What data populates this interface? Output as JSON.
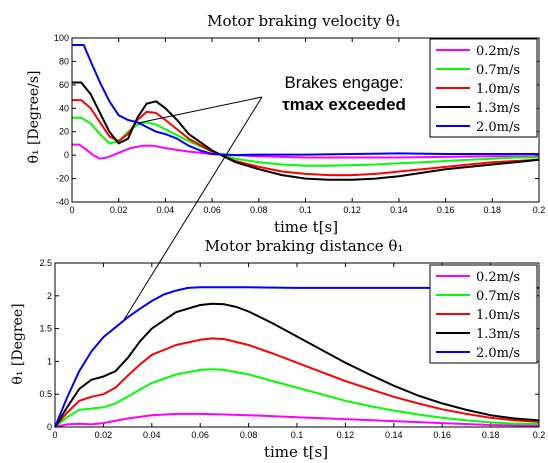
{
  "chart_data": [
    {
      "type": "line",
      "title": "Motor braking velocity θ̇₁",
      "xlabel": "time t[s]",
      "ylabel": "θ̇₁ [Degree/s]",
      "xlim": [
        0,
        0.2
      ],
      "ylim": [
        -40,
        100
      ],
      "xticks": [
        "0",
        "0.02",
        "0.04",
        "0.06",
        "0.08",
        "0.1",
        "0.12",
        "0.14",
        "0.16",
        "0.18",
        "0.2"
      ],
      "yticks": [
        "-40",
        "-20",
        "0",
        "20",
        "40",
        "60",
        "80",
        "100"
      ],
      "grid": false,
      "legend_position": "top-right",
      "annotation": {
        "lines": [
          "Brakes engage:",
          "τmax exceeded"
        ]
      },
      "series": [
        {
          "name": "0.2m/s",
          "color": "#ff00ff",
          "x": [
            0,
            0.003,
            0.006,
            0.009,
            0.012,
            0.015,
            0.02,
            0.025,
            0.03,
            0.035,
            0.04,
            0.05,
            0.06,
            0.07,
            0.08,
            0.1,
            0.12,
            0.14,
            0.16,
            0.18,
            0.2
          ],
          "y": [
            9,
            9,
            5,
            0,
            -3,
            -2,
            2,
            6,
            8,
            8,
            6,
            3,
            1,
            0,
            -1,
            -2,
            -2,
            -2,
            -1.5,
            -1,
            -1
          ]
        },
        {
          "name": "0.7m/s",
          "color": "#00ff00",
          "x": [
            0,
            0.004,
            0.008,
            0.012,
            0.016,
            0.02,
            0.024,
            0.028,
            0.032,
            0.036,
            0.04,
            0.045,
            0.05,
            0.06,
            0.07,
            0.08,
            0.09,
            0.1,
            0.11,
            0.12,
            0.13,
            0.14,
            0.15,
            0.16,
            0.17,
            0.18,
            0.19,
            0.2
          ],
          "y": [
            32,
            32,
            27,
            18,
            10,
            12,
            20,
            26,
            28,
            26,
            22,
            17,
            12,
            3,
            -3,
            -6,
            -8,
            -9,
            -9,
            -8.5,
            -8,
            -7,
            -6,
            -5,
            -4,
            -3,
            -2,
            -2
          ]
        },
        {
          "name": "1.0m/s",
          "color": "#ff0000",
          "x": [
            0,
            0.004,
            0.008,
            0.012,
            0.016,
            0.02,
            0.024,
            0.028,
            0.032,
            0.036,
            0.04,
            0.045,
            0.05,
            0.06,
            0.07,
            0.08,
            0.09,
            0.1,
            0.11,
            0.12,
            0.13,
            0.14,
            0.15,
            0.16,
            0.17,
            0.18,
            0.19,
            0.2
          ],
          "y": [
            47,
            47,
            40,
            28,
            16,
            12,
            18,
            30,
            37,
            36,
            30,
            22,
            14,
            3,
            -5,
            -10,
            -14,
            -16,
            -17,
            -17,
            -16,
            -14,
            -12,
            -10,
            -8,
            -6,
            -5,
            -4
          ]
        },
        {
          "name": "1.3m/s",
          "color": "#000000",
          "x": [
            0,
            0.004,
            0.008,
            0.012,
            0.016,
            0.02,
            0.024,
            0.028,
            0.032,
            0.036,
            0.04,
            0.045,
            0.05,
            0.06,
            0.07,
            0.08,
            0.09,
            0.1,
            0.11,
            0.12,
            0.13,
            0.14,
            0.15,
            0.16,
            0.17,
            0.18,
            0.19,
            0.2
          ],
          "y": [
            62,
            62,
            52,
            36,
            20,
            10,
            14,
            32,
            44,
            46,
            40,
            30,
            18,
            4,
            -6,
            -12,
            -17,
            -20,
            -21,
            -21,
            -20,
            -18,
            -15,
            -12,
            -10,
            -8,
            -6,
            -4
          ]
        },
        {
          "name": "2.0m/s",
          "color": "#0000ff",
          "x": [
            0,
            0.005,
            0.008,
            0.012,
            0.016,
            0.02,
            0.024,
            0.028,
            0.032,
            0.036,
            0.04,
            0.045,
            0.05,
            0.055,
            0.06,
            0.07,
            0.08,
            0.1,
            0.12,
            0.14,
            0.16,
            0.18,
            0.2
          ],
          "y": [
            94,
            94,
            80,
            62,
            46,
            34,
            30,
            28,
            24,
            20,
            18,
            14,
            8,
            4,
            1,
            0,
            0.5,
            0.5,
            1,
            1.5,
            1,
            1,
            1
          ]
        }
      ]
    },
    {
      "type": "line",
      "title": "Motor braking distance θ₁",
      "xlabel": "time t[s]",
      "ylabel": "θ₁ [Degree]",
      "xlim": [
        0,
        0.2
      ],
      "ylim": [
        0,
        2.5
      ],
      "xticks": [
        "0",
        "0.02",
        "0.04",
        "0.06",
        "0.08",
        "0.1",
        "0.12",
        "0.14",
        "0.16",
        "0.18",
        "0.2"
      ],
      "yticks": [
        "0",
        "0.5",
        "1",
        "1.5",
        "2",
        "2.5"
      ],
      "grid": false,
      "legend_position": "top-right",
      "series": [
        {
          "name": "0.2m/s",
          "color": "#ff00ff",
          "x": [
            0,
            0.005,
            0.01,
            0.015,
            0.02,
            0.03,
            0.04,
            0.05,
            0.06,
            0.07,
            0.08,
            0.1,
            0.12,
            0.14,
            0.16,
            0.18,
            0.2
          ],
          "y": [
            0,
            0.04,
            0.05,
            0.04,
            0.06,
            0.13,
            0.18,
            0.2,
            0.2,
            0.19,
            0.18,
            0.15,
            0.12,
            0.09,
            0.06,
            0.03,
            0.02
          ]
        },
        {
          "name": "0.7m/s",
          "color": "#00ff00",
          "x": [
            0,
            0.005,
            0.01,
            0.015,
            0.02,
            0.025,
            0.03,
            0.035,
            0.04,
            0.05,
            0.06,
            0.065,
            0.07,
            0.08,
            0.09,
            0.1,
            0.11,
            0.12,
            0.13,
            0.14,
            0.15,
            0.16,
            0.17,
            0.18,
            0.19,
            0.2
          ],
          "y": [
            0,
            0.15,
            0.26,
            0.28,
            0.3,
            0.36,
            0.46,
            0.57,
            0.67,
            0.8,
            0.87,
            0.88,
            0.87,
            0.8,
            0.7,
            0.6,
            0.5,
            0.4,
            0.32,
            0.25,
            0.19,
            0.14,
            0.1,
            0.07,
            0.05,
            0.05
          ]
        },
        {
          "name": "1.0m/s",
          "color": "#ff0000",
          "x": [
            0,
            0.005,
            0.01,
            0.015,
            0.02,
            0.025,
            0.03,
            0.035,
            0.04,
            0.05,
            0.06,
            0.065,
            0.07,
            0.08,
            0.09,
            0.1,
            0.11,
            0.12,
            0.13,
            0.14,
            0.15,
            0.16,
            0.17,
            0.18,
            0.19,
            0.2
          ],
          "y": [
            0,
            0.22,
            0.4,
            0.46,
            0.5,
            0.6,
            0.78,
            0.95,
            1.1,
            1.25,
            1.33,
            1.35,
            1.34,
            1.25,
            1.12,
            0.98,
            0.84,
            0.7,
            0.58,
            0.46,
            0.36,
            0.27,
            0.2,
            0.14,
            0.1,
            0.08
          ]
        },
        {
          "name": "1.3m/s",
          "color": "#000000",
          "x": [
            0,
            0.005,
            0.01,
            0.015,
            0.02,
            0.025,
            0.03,
            0.035,
            0.04,
            0.05,
            0.06,
            0.065,
            0.07,
            0.075,
            0.08,
            0.09,
            0.1,
            0.11,
            0.12,
            0.13,
            0.14,
            0.15,
            0.16,
            0.17,
            0.18,
            0.19,
            0.2
          ],
          "y": [
            0,
            0.3,
            0.58,
            0.72,
            0.77,
            0.85,
            1.05,
            1.3,
            1.5,
            1.75,
            1.86,
            1.88,
            1.87,
            1.83,
            1.76,
            1.58,
            1.38,
            1.18,
            0.98,
            0.8,
            0.63,
            0.48,
            0.36,
            0.26,
            0.18,
            0.13,
            0.1
          ]
        },
        {
          "name": "2.0m/s",
          "color": "#0000ff",
          "x": [
            0,
            0.005,
            0.01,
            0.015,
            0.02,
            0.025,
            0.03,
            0.035,
            0.04,
            0.045,
            0.05,
            0.055,
            0.06,
            0.065,
            0.07,
            0.08,
            0.1,
            0.12,
            0.14,
            0.16,
            0.18,
            0.2
          ],
          "y": [
            0,
            0.45,
            0.85,
            1.15,
            1.37,
            1.52,
            1.67,
            1.8,
            1.92,
            2.02,
            2.08,
            2.12,
            2.13,
            2.13,
            2.13,
            2.13,
            2.12,
            2.12,
            2.12,
            2.12,
            2.12,
            2.12
          ]
        }
      ]
    }
  ]
}
